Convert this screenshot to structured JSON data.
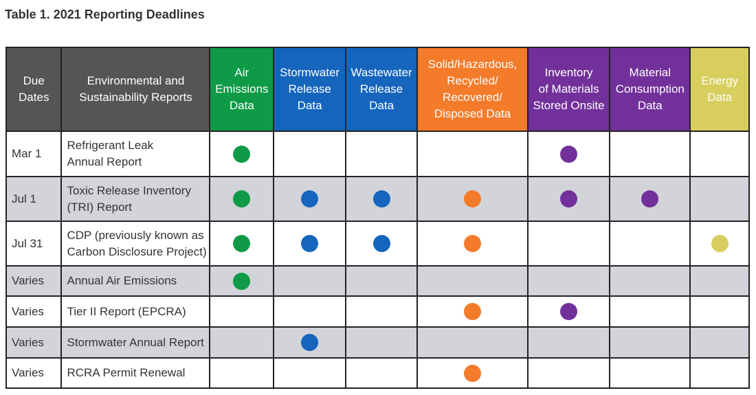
{
  "title": "Table 1. 2021 Reporting Deadlines",
  "columns": [
    {
      "key": "due",
      "label": "Due Dates",
      "color": "#555555"
    },
    {
      "key": "report",
      "label": "Environmental and Sustainability Reports",
      "color": "#555555"
    },
    {
      "key": "air",
      "label": "Air Emissions Data",
      "color": "#0e9a46"
    },
    {
      "key": "storm",
      "label": "Stormwater Release Data",
      "color": "#1565bd"
    },
    {
      "key": "waste",
      "label": "Wastewater Release Data",
      "color": "#1565bd"
    },
    {
      "key": "solid",
      "label": "Solid/Hazardous, Recycled/ Recovered/ Disposed Data",
      "color": "#f47b2a"
    },
    {
      "key": "inv",
      "label": "Inventory of Materials Stored Onsite",
      "color": "#72309a"
    },
    {
      "key": "mat",
      "label": "Material Consumption Data",
      "color": "#72309a"
    },
    {
      "key": "energy",
      "label": "Energy Data",
      "color": "#d8ce5e"
    }
  ],
  "rows": [
    {
      "due": "Mar 1",
      "report": "Refrigerant Leak Annual Report",
      "marks": [
        true,
        false,
        false,
        false,
        true,
        false,
        false
      ]
    },
    {
      "due": "Jul 1",
      "report": "Toxic Release Inventory (TRI) Report",
      "marks": [
        true,
        true,
        true,
        true,
        true,
        true,
        false
      ]
    },
    {
      "due": "Jul 31",
      "report": "CDP (previously known as Carbon Disclosure Project)",
      "marks": [
        true,
        true,
        true,
        true,
        false,
        false,
        true
      ]
    },
    {
      "due": "Varies",
      "report": "Annual Air Emissions",
      "marks": [
        true,
        false,
        false,
        false,
        false,
        false,
        false
      ]
    },
    {
      "due": "Varies",
      "report": "Tier II Report (EPCRA)",
      "marks": [
        false,
        false,
        false,
        true,
        true,
        false,
        false
      ]
    },
    {
      "due": "Varies",
      "report": "Stormwater Annual Report",
      "marks": [
        false,
        true,
        false,
        false,
        false,
        false,
        false
      ]
    },
    {
      "due": "Varies",
      "report": "RCRA Permit Renewal",
      "marks": [
        false,
        false,
        false,
        true,
        false,
        false,
        false
      ]
    }
  ]
}
